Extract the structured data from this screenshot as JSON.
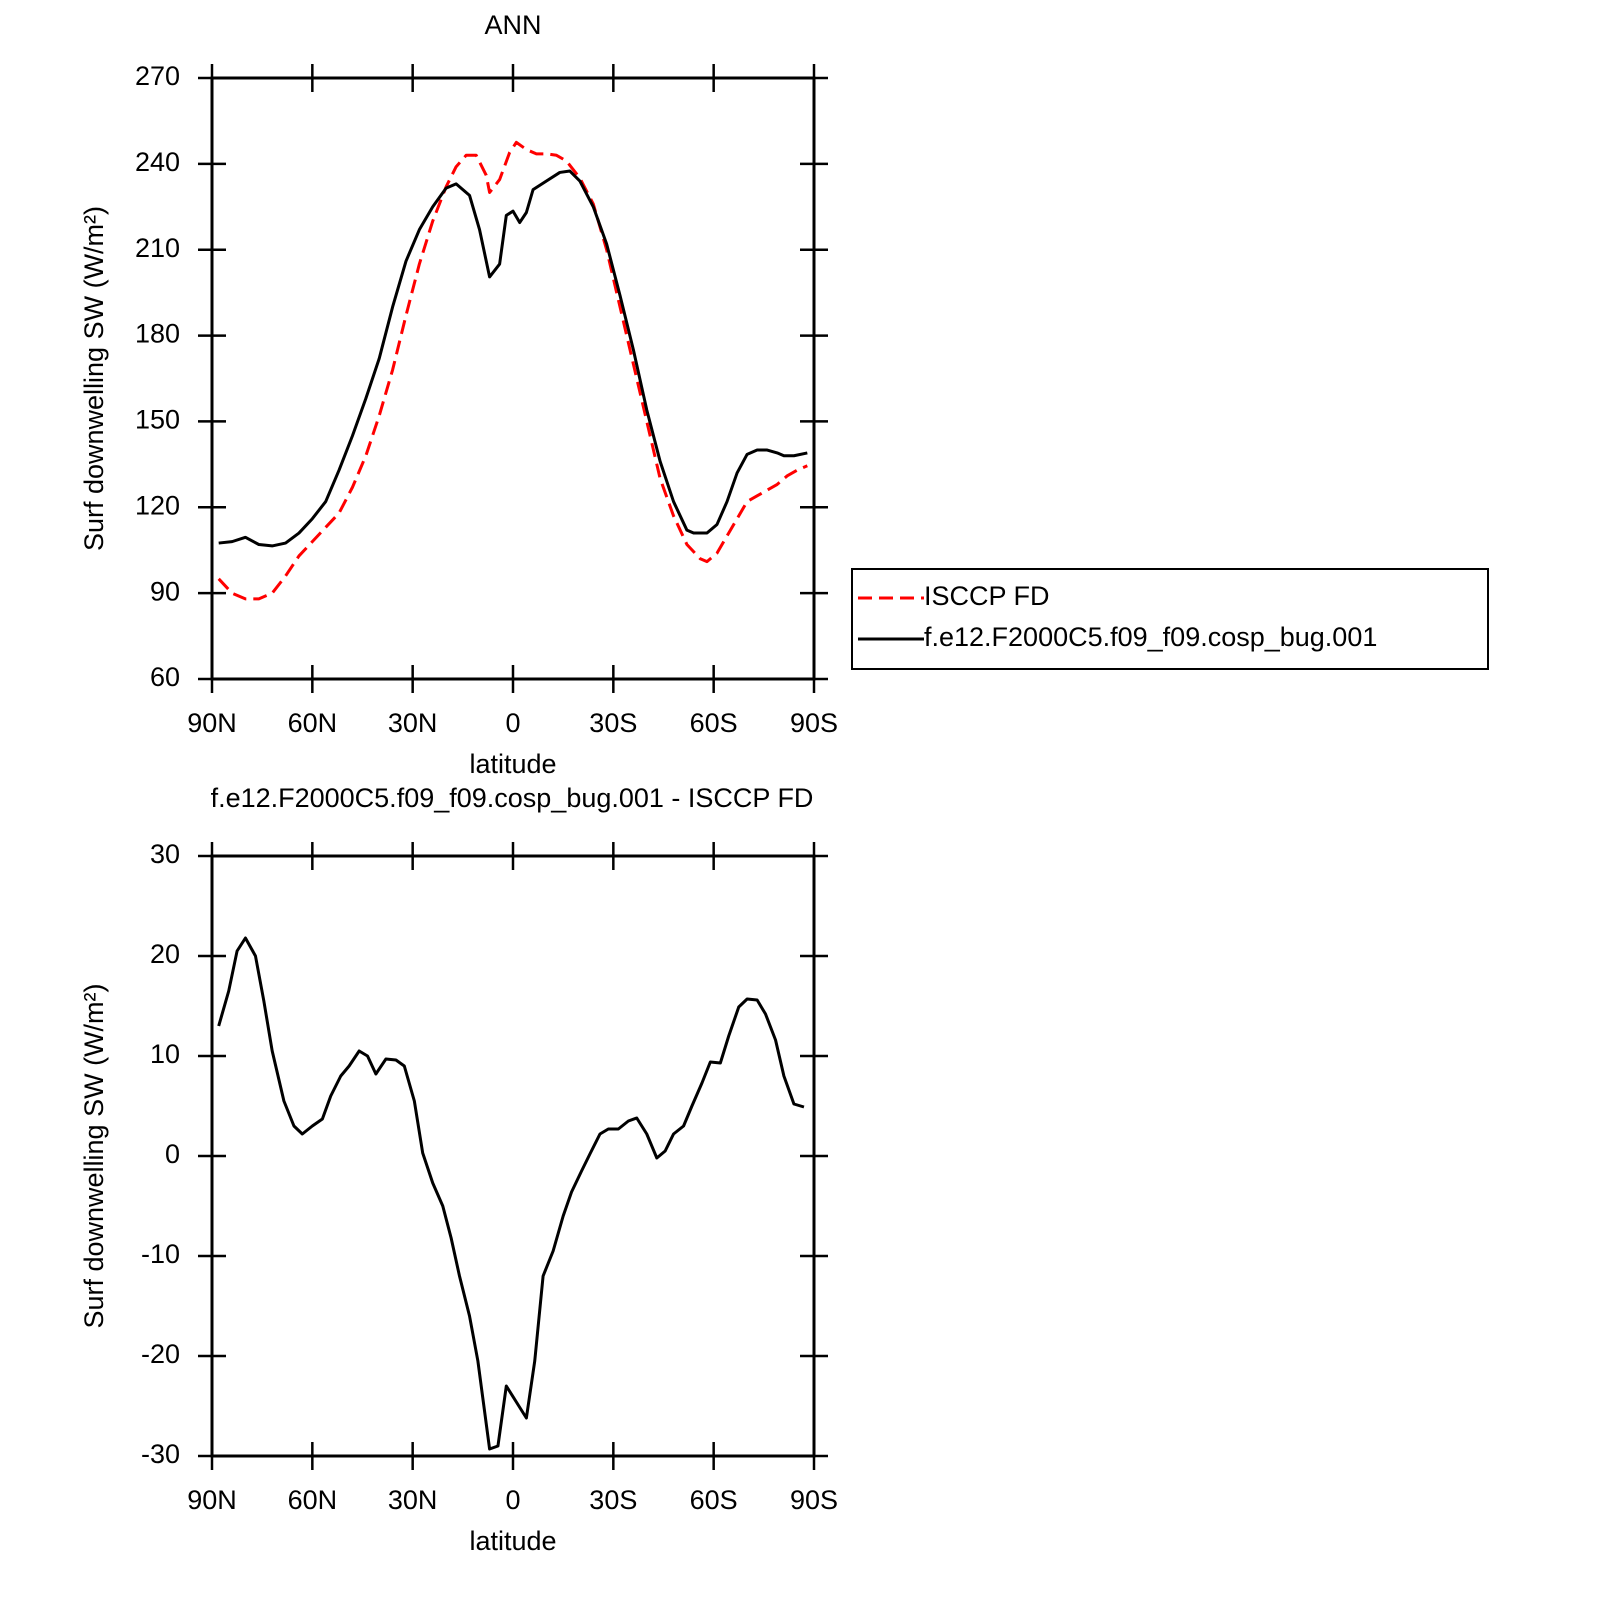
{
  "chart_data": [
    {
      "type": "line",
      "title": "ANN",
      "xlabel": "latitude",
      "ylabel": "Surf downwelling SW (W/m²)",
      "xlim": [
        90,
        -90
      ],
      "xticks": [
        {
          "value": 90,
          "label": "90N"
        },
        {
          "value": 60,
          "label": "60N"
        },
        {
          "value": 30,
          "label": "30N"
        },
        0,
        {
          "value": -30,
          "label": "30S"
        },
        {
          "value": -60,
          "label": "60S"
        },
        {
          "value": -90,
          "label": "90S"
        }
      ],
      "ylim": [
        60,
        270
      ],
      "yticks": [
        60,
        90,
        120,
        150,
        180,
        210,
        240,
        270
      ],
      "legend": "right",
      "series": [
        {
          "name": "ISCCP FD",
          "color": "#ff0000",
          "line_style": "dashed",
          "x": [
            88,
            84,
            80,
            76,
            72,
            68,
            64,
            60,
            56,
            52,
            48,
            44,
            40,
            36,
            32,
            28,
            24,
            20,
            17,
            14,
            11,
            8,
            7,
            4,
            1,
            -1,
            -4,
            -7,
            -10,
            -13,
            -16,
            -20,
            -24,
            -28,
            -32,
            -36,
            -40,
            -44,
            -48,
            -52,
            -56,
            -58,
            -61,
            -64,
            -67,
            -70,
            -73,
            -76,
            -79,
            -82,
            -85,
            -88
          ],
          "values": [
            95,
            90,
            88,
            88,
            90,
            96,
            103,
            108,
            113,
            118,
            127,
            138,
            152,
            168,
            187,
            205,
            220,
            232,
            239,
            243,
            243,
            236,
            230,
            234.5,
            244,
            247.5,
            245,
            243.5,
            243.5,
            243,
            241,
            235,
            226,
            210,
            190,
            170,
            150,
            130,
            117,
            107,
            102,
            101,
            104,
            110,
            116,
            122,
            124,
            126,
            128,
            131,
            133,
            134.5
          ]
        },
        {
          "name": "f.e12.F2000C5.f09_f09.cosp_bug.001",
          "color": "#000000",
          "line_style": "solid",
          "x": [
            88,
            84,
            80,
            76,
            72,
            68,
            64,
            60,
            56,
            52,
            48,
            44,
            40,
            36,
            32,
            28,
            24,
            20,
            17,
            13,
            10,
            7,
            4,
            2,
            0,
            -2,
            -4,
            -6,
            -10,
            -14,
            -17,
            -20,
            -24,
            -28,
            -32,
            -36,
            -40,
            -44,
            -48,
            -52,
            -54,
            -58,
            -61,
            -64,
            -67,
            -70,
            -73,
            -76,
            -79,
            -81,
            -84,
            -88
          ],
          "values": [
            107.5,
            108,
            109.5,
            107,
            106.5,
            107.5,
            111,
            116,
            122,
            133,
            145,
            158,
            172,
            190,
            206,
            217,
            225,
            231.5,
            233,
            229,
            217,
            200.5,
            205,
            222,
            223.5,
            219.5,
            223,
            231,
            234,
            237,
            237.5,
            234,
            225,
            212,
            194,
            175,
            154,
            136,
            122,
            112,
            111,
            111,
            114,
            122,
            132,
            138.5,
            140,
            140,
            139,
            138,
            138,
            139
          ]
        }
      ]
    },
    {
      "type": "line",
      "title": "f.e12.F2000C5.f09_f09.cosp_bug.001 - ISCCP FD",
      "xlabel": "latitude",
      "ylabel": "Surf downwelling SW (W/m²)",
      "xlim": [
        90,
        -90
      ],
      "xticks": [
        {
          "value": 90,
          "label": "90N"
        },
        {
          "value": 60,
          "label": "60N"
        },
        {
          "value": 30,
          "label": "30N"
        },
        0,
        {
          "value": -30,
          "label": "30S"
        },
        {
          "value": -60,
          "label": "60S"
        },
        {
          "value": -90,
          "label": "90S"
        }
      ],
      "ylim": [
        -30,
        30
      ],
      "yticks": [
        -30,
        -20,
        -10,
        0,
        10,
        20,
        30
      ],
      "color": "#000000",
      "x": [
        88,
        85,
        82.5,
        80,
        77,
        74.5,
        72,
        68.5,
        65.5,
        63,
        60,
        57,
        54.5,
        51.5,
        49,
        46,
        43.5,
        41,
        38,
        35,
        32.5,
        29.5,
        27,
        24,
        21,
        18.5,
        16,
        13,
        10.5,
        7,
        4.5,
        2,
        -1,
        -4,
        -6.5,
        -9,
        -12,
        -15,
        -17.5,
        -20.5,
        -23,
        -26,
        -28.5,
        -31.5,
        -34.5,
        -37,
        -40,
        -43,
        -45.5,
        -48,
        -51,
        -53.5,
        -56.5,
        -59,
        -62,
        -64.5,
        -67.5,
        -70,
        -73,
        -75.5,
        -78.5,
        -81,
        -84,
        -87
      ],
      "values": [
        13,
        16.5,
        20.5,
        21.8,
        20,
        15.5,
        10.5,
        5.5,
        3,
        2.2,
        3,
        3.7,
        6,
        8,
        9,
        10.5,
        10,
        8.2,
        9.7,
        9.6,
        9,
        5.5,
        0.3,
        -2.7,
        -5,
        -8.2,
        -12,
        -16,
        -20.5,
        -29.3,
        -29,
        -23,
        -24.6,
        -26.2,
        -20.5,
        -12,
        -9.5,
        -6,
        -3.6,
        -1.5,
        0.2,
        2.2,
        2.7,
        2.7,
        3.5,
        3.8,
        2.2,
        -0.2,
        0.5,
        2.2,
        3,
        5,
        7.3,
        9.4,
        9.3,
        12,
        14.9,
        15.7,
        15.6,
        14.2,
        11.6,
        8,
        5.2,
        4.9
      ]
    }
  ]
}
